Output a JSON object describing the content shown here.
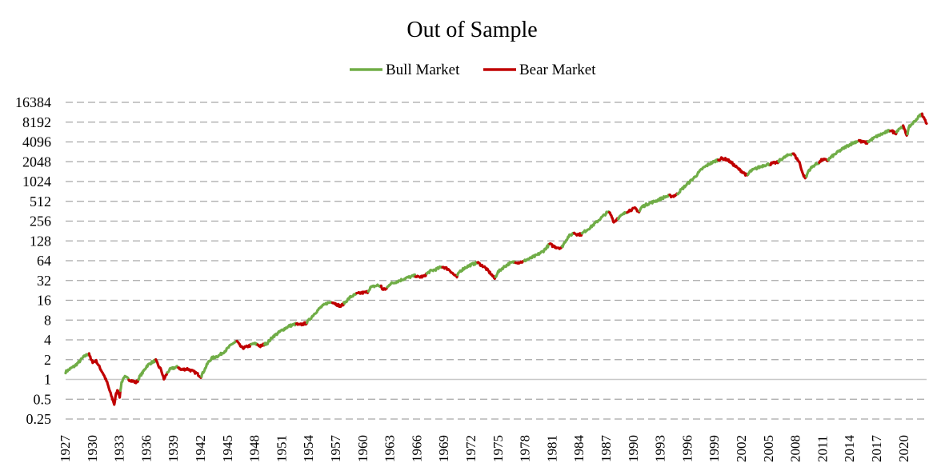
{
  "chart_data": {
    "type": "line",
    "title": "Out of Sample",
    "xlabel": "",
    "ylabel": "",
    "y_scale": "log2",
    "ylim": [
      0.25,
      16384
    ],
    "xlim": [
      1927,
      2022.5
    ],
    "y_ticks": [
      "0.25",
      "0.5",
      "1",
      "2",
      "4",
      "8",
      "16",
      "32",
      "64",
      "128",
      "256",
      "512",
      "1024",
      "2048",
      "4096",
      "8192",
      "16384"
    ],
    "x_ticks": [
      "1927",
      "1930",
      "1933",
      "1936",
      "1939",
      "1942",
      "1945",
      "1948",
      "1951",
      "1954",
      "1957",
      "1960",
      "1963",
      "1966",
      "1969",
      "1972",
      "1975",
      "1978",
      "1981",
      "1984",
      "1987",
      "1990",
      "1993",
      "1996",
      "1999",
      "2002",
      "2005",
      "2008",
      "2011",
      "2014",
      "2017",
      "2020"
    ],
    "grid": "horizontal-dashed",
    "legend_position": "top-center",
    "series": [
      {
        "name": "Bull Market",
        "color": "#70ad47"
      },
      {
        "name": "Bear Market",
        "color": "#c00000"
      }
    ],
    "points": [
      [
        1927.0,
        1.3
      ],
      [
        1927.5,
        1.45
      ],
      [
        1928.0,
        1.6
      ],
      [
        1928.5,
        1.85
      ],
      [
        1929.0,
        2.2
      ],
      [
        1929.6,
        2.5
      ],
      [
        1929.8,
        2.0
      ],
      [
        1930.0,
        1.85
      ],
      [
        1930.4,
        1.9
      ],
      [
        1930.8,
        1.5
      ],
      [
        1931.2,
        1.2
      ],
      [
        1931.6,
        0.9
      ],
      [
        1932.0,
        0.6
      ],
      [
        1932.4,
        0.42
      ],
      [
        1932.6,
        0.6
      ],
      [
        1932.8,
        0.7
      ],
      [
        1933.0,
        0.55
      ],
      [
        1933.2,
        0.9
      ],
      [
        1933.5,
        1.1
      ],
      [
        1933.8,
        1.05
      ],
      [
        1934.0,
        1.0
      ],
      [
        1934.4,
        0.95
      ],
      [
        1934.8,
        0.9
      ],
      [
        1935.0,
        0.95
      ],
      [
        1935.2,
        1.1
      ],
      [
        1935.6,
        1.3
      ],
      [
        1936.0,
        1.6
      ],
      [
        1936.5,
        1.8
      ],
      [
        1937.0,
        1.95
      ],
      [
        1937.3,
        1.6
      ],
      [
        1937.6,
        1.4
      ],
      [
        1937.9,
        1.0
      ],
      [
        1938.2,
        1.2
      ],
      [
        1938.5,
        1.4
      ],
      [
        1939.0,
        1.5
      ],
      [
        1939.5,
        1.55
      ],
      [
        1939.8,
        1.4
      ],
      [
        1940.5,
        1.45
      ],
      [
        1941.0,
        1.35
      ],
      [
        1941.5,
        1.25
      ],
      [
        1942.0,
        1.1
      ],
      [
        1942.4,
        1.4
      ],
      [
        1942.8,
        1.8
      ],
      [
        1943.2,
        2.1
      ],
      [
        1944.0,
        2.3
      ],
      [
        1944.8,
        2.8
      ],
      [
        1945.5,
        3.5
      ],
      [
        1946.0,
        3.8
      ],
      [
        1946.3,
        3.3
      ],
      [
        1946.6,
        3.0
      ],
      [
        1947.0,
        3.1
      ],
      [
        1947.5,
        3.3
      ],
      [
        1947.8,
        3.5
      ],
      [
        1948.3,
        3.4
      ],
      [
        1948.6,
        3.2
      ],
      [
        1949.0,
        3.4
      ],
      [
        1949.4,
        3.6
      ],
      [
        1950.0,
        4.5
      ],
      [
        1950.5,
        5.0
      ],
      [
        1951.0,
        5.6
      ],
      [
        1951.8,
        6.5
      ],
      [
        1952.6,
        7.0
      ],
      [
        1952.9,
        6.7
      ],
      [
        1953.4,
        7.0
      ],
      [
        1953.7,
        7.2
      ],
      [
        1954.0,
        8.0
      ],
      [
        1954.6,
        10.0
      ],
      [
        1955.3,
        12.5
      ],
      [
        1956.0,
        14.5
      ],
      [
        1956.6,
        15.2
      ],
      [
        1957.0,
        14.0
      ],
      [
        1957.5,
        13.0
      ],
      [
        1957.8,
        14.0
      ],
      [
        1958.0,
        15.0
      ],
      [
        1958.6,
        18.0
      ],
      [
        1959.3,
        20.0
      ],
      [
        1959.6,
        20.5
      ],
      [
        1960.2,
        21.0
      ],
      [
        1960.5,
        21.5
      ],
      [
        1960.8,
        25.0
      ],
      [
        1961.6,
        27.0
      ],
      [
        1962.0,
        26.0
      ],
      [
        1962.2,
        23.0
      ],
      [
        1962.6,
        24.0
      ],
      [
        1962.9,
        28.0
      ],
      [
        1963.8,
        31.0
      ],
      [
        1964.8,
        35.0
      ],
      [
        1965.8,
        38.0
      ],
      [
        1966.1,
        36.0
      ],
      [
        1966.8,
        37.0
      ],
      [
        1967.0,
        40.0
      ],
      [
        1967.4,
        44.0
      ],
      [
        1968.2,
        48.0
      ],
      [
        1968.8,
        52.0
      ],
      [
        1969.1,
        50.0
      ],
      [
        1969.6,
        46.0
      ],
      [
        1970.0,
        40.0
      ],
      [
        1970.4,
        36.0
      ],
      [
        1970.7,
        44.0
      ],
      [
        1971.3,
        50.0
      ],
      [
        1971.9,
        55.0
      ],
      [
        1972.7,
        60.0
      ],
      [
        1973.0,
        56.0
      ],
      [
        1973.4,
        52.0
      ],
      [
        1973.8,
        46.0
      ],
      [
        1974.2,
        40.0
      ],
      [
        1974.6,
        34.0
      ],
      [
        1974.9,
        42.0
      ],
      [
        1975.5,
        50.0
      ],
      [
        1976.2,
        58.0
      ],
      [
        1976.9,
        62.0
      ],
      [
        1977.2,
        60.0
      ],
      [
        1977.8,
        62.0
      ],
      [
        1978.0,
        65.0
      ],
      [
        1978.6,
        70.0
      ],
      [
        1979.3,
        78.0
      ],
      [
        1980.0,
        90.0
      ],
      [
        1980.7,
        115.0
      ],
      [
        1981.0,
        108.0
      ],
      [
        1981.5,
        102.0
      ],
      [
        1982.0,
        100.0
      ],
      [
        1982.4,
        125.0
      ],
      [
        1982.8,
        150.0
      ],
      [
        1983.4,
        170.0
      ],
      [
        1983.7,
        162.0
      ],
      [
        1984.2,
        160.0
      ],
      [
        1984.5,
        175.0
      ],
      [
        1985.3,
        210.0
      ],
      [
        1986.2,
        270.0
      ],
      [
        1987.0,
        340.0
      ],
      [
        1987.3,
        350.0
      ],
      [
        1987.6,
        300.0
      ],
      [
        1987.8,
        245.0
      ],
      [
        1988.2,
        280.0
      ],
      [
        1988.5,
        300.0
      ],
      [
        1989.3,
        360.0
      ],
      [
        1989.7,
        380.0
      ],
      [
        1990.2,
        400.0
      ],
      [
        1990.6,
        350.0
      ],
      [
        1990.9,
        420.0
      ],
      [
        1991.6,
        470.0
      ],
      [
        1992.5,
        520.0
      ],
      [
        1993.5,
        600.0
      ],
      [
        1994.0,
        620.0
      ],
      [
        1994.3,
        610.0
      ],
      [
        1994.8,
        650.0
      ],
      [
        1995.2,
        750.0
      ],
      [
        1996.0,
        950.0
      ],
      [
        1996.8,
        1200.0
      ],
      [
        1997.6,
        1600.0
      ],
      [
        1998.4,
        1900.0
      ],
      [
        1999.4,
        2200.0
      ],
      [
        1999.8,
        2300.0
      ],
      [
        2000.4,
        2200.0
      ],
      [
        2001.0,
        1900.0
      ],
      [
        2001.6,
        1600.0
      ],
      [
        2002.2,
        1400.0
      ],
      [
        2002.6,
        1250.0
      ],
      [
        2002.9,
        1450.0
      ],
      [
        2003.5,
        1600.0
      ],
      [
        2004.4,
        1800.0
      ],
      [
        2005.2,
        1900.0
      ],
      [
        2005.5,
        1950.0
      ],
      [
        2006.0,
        2000.0
      ],
      [
        2006.3,
        2200.0
      ],
      [
        2007.2,
        2600.0
      ],
      [
        2007.7,
        2750.0
      ],
      [
        2008.0,
        2400.0
      ],
      [
        2008.4,
        2000.0
      ],
      [
        2008.8,
        1300.0
      ],
      [
        2009.1,
        1150.0
      ],
      [
        2009.4,
        1500.0
      ],
      [
        2010.0,
        1800.0
      ],
      [
        2010.6,
        2000.0
      ],
      [
        2010.9,
        2200.0
      ],
      [
        2011.5,
        2150.0
      ],
      [
        2011.9,
        2400.0
      ],
      [
        2012.7,
        2900.0
      ],
      [
        2013.6,
        3500.0
      ],
      [
        2014.4,
        4000.0
      ],
      [
        2015.0,
        4300.0
      ],
      [
        2015.3,
        4100.0
      ],
      [
        2015.9,
        4000.0
      ],
      [
        2016.2,
        4300.0
      ],
      [
        2017.0,
        5000.0
      ],
      [
        2017.8,
        5600.0
      ],
      [
        2018.5,
        6200.0
      ],
      [
        2018.8,
        5800.0
      ],
      [
        2019.1,
        5600.0
      ],
      [
        2019.4,
        6500.0
      ],
      [
        2019.9,
        7000.0
      ],
      [
        2020.1,
        6000.0
      ],
      [
        2020.3,
        5200.0
      ],
      [
        2020.6,
        7000.0
      ],
      [
        2021.2,
        8500.0
      ],
      [
        2021.8,
        10500.0
      ],
      [
        2022.0,
        10800.0
      ],
      [
        2022.2,
        9500.0
      ],
      [
        2022.5,
        7800.0
      ]
    ],
    "bear_periods": [
      [
        1929.6,
        1933.0
      ],
      [
        1934.0,
        1935.0
      ],
      [
        1937.0,
        1938.2
      ],
      [
        1939.5,
        1942.0
      ],
      [
        1946.0,
        1947.5
      ],
      [
        1948.3,
        1949.0
      ],
      [
        1952.6,
        1953.7
      ],
      [
        1956.6,
        1957.8
      ],
      [
        1959.3,
        1960.5
      ],
      [
        1962.0,
        1962.6
      ],
      [
        1965.8,
        1967.0
      ],
      [
        1968.8,
        1970.4
      ],
      [
        1972.7,
        1974.6
      ],
      [
        1976.9,
        1977.8
      ],
      [
        1980.7,
        1982.0
      ],
      [
        1983.4,
        1984.2
      ],
      [
        1987.3,
        1988.2
      ],
      [
        1989.3,
        1990.6
      ],
      [
        1994.0,
        1994.8
      ],
      [
        1999.4,
        2002.6
      ],
      [
        2005.2,
        2006.0
      ],
      [
        2007.7,
        2009.1
      ],
      [
        2010.6,
        2011.5
      ],
      [
        2015.0,
        2015.9
      ],
      [
        2018.5,
        2019.1
      ],
      [
        2019.9,
        2020.3
      ],
      [
        2022.0,
        2022.5
      ]
    ]
  }
}
